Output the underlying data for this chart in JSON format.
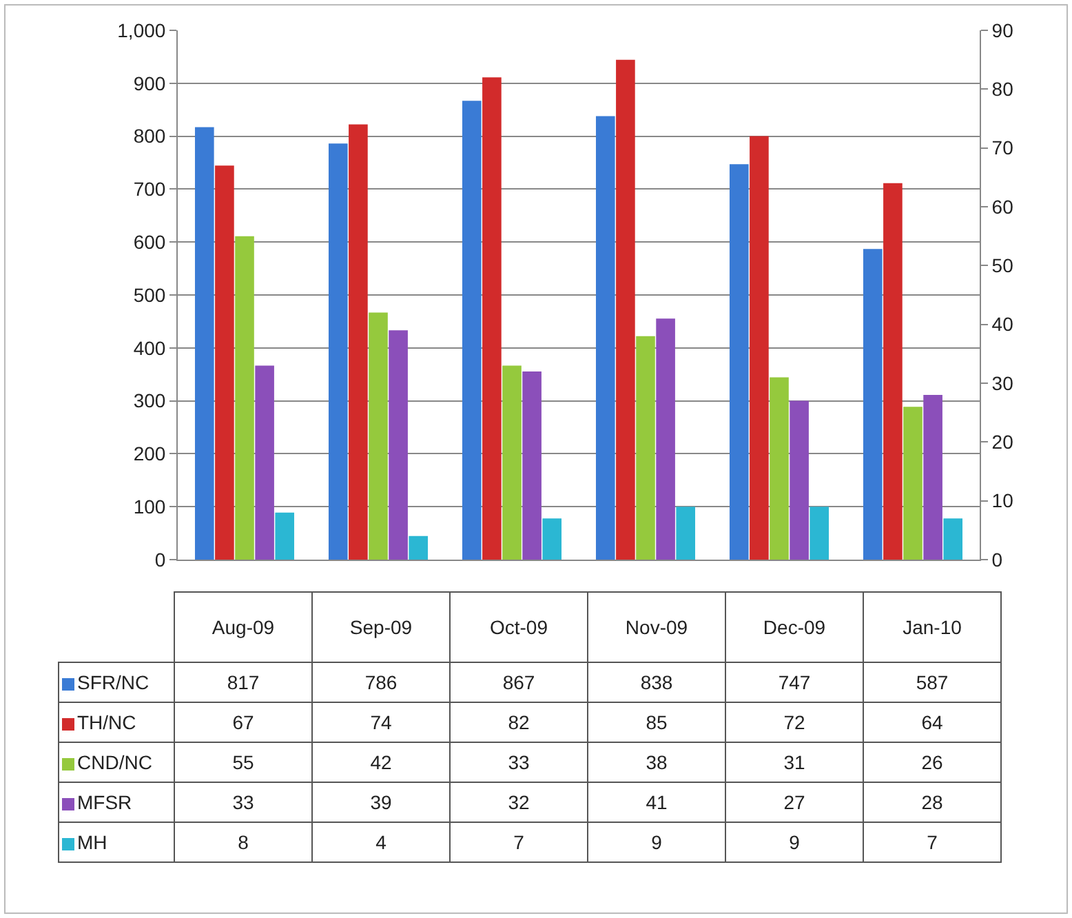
{
  "chart_data": {
    "type": "bar",
    "categories": [
      "Aug-09",
      "Sep-09",
      "Oct-09",
      "Nov-09",
      "Dec-09",
      "Jan-10"
    ],
    "series": [
      {
        "name": "SFR/NC",
        "color": "#3a7bd5",
        "values": [
          817,
          786,
          867,
          838,
          747,
          587
        ]
      },
      {
        "name": "TH/NC",
        "color": "#d22b2b",
        "values": [
          67,
          74,
          82,
          85,
          72,
          64
        ],
        "axis": "y2"
      },
      {
        "name": "CND/NC",
        "color": "#95c93d",
        "values": [
          55,
          42,
          33,
          38,
          31,
          26
        ],
        "axis": "y2"
      },
      {
        "name": "MFSR",
        "color": "#8b4fba",
        "values": [
          33,
          39,
          32,
          41,
          27,
          28
        ],
        "axis": "y2"
      },
      {
        "name": "MH",
        "color": "#2bb7d3",
        "values": [
          8,
          4,
          7,
          9,
          9,
          7
        ],
        "axis": "y2"
      }
    ],
    "ylim": [
      0,
      1000
    ],
    "yticks": [
      0,
      100,
      200,
      300,
      400,
      500,
      600,
      700,
      800,
      900,
      {
        "value": 1000,
        "label": "1,000"
      }
    ],
    "y2lim": [
      0,
      90
    ],
    "y2ticks": [
      0,
      10,
      20,
      30,
      40,
      50,
      60,
      70,
      80,
      90
    ],
    "grid": "y",
    "legend": "bottom",
    "data_labels": true,
    "tick_labels": "y"
  }
}
